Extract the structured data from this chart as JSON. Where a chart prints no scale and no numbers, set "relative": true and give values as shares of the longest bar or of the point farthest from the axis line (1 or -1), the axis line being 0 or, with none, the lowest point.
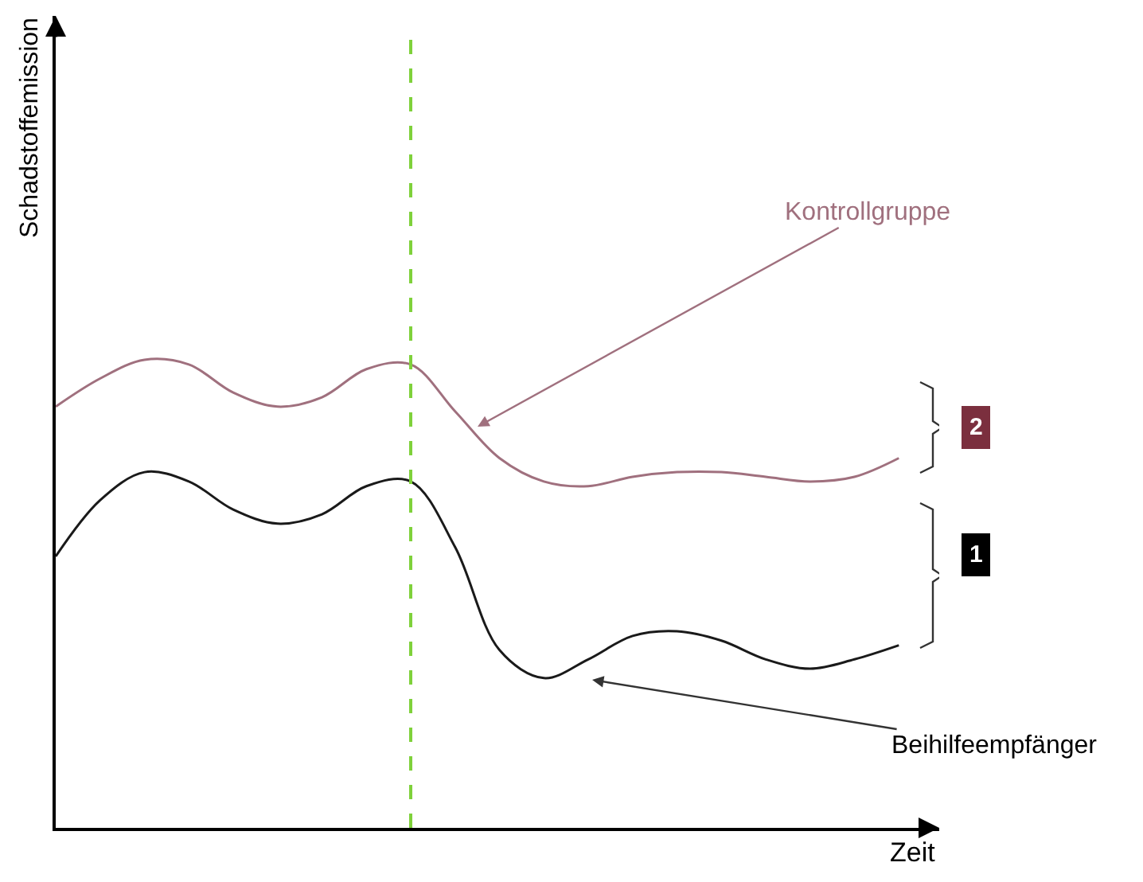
{
  "chart_data": {
    "type": "line",
    "relative": true,
    "xlabel": "Zeit",
    "ylabel": "Schadstoffemission",
    "categories": [
      null,
      null,
      null,
      null,
      null,
      null,
      null,
      null,
      null,
      null,
      null,
      null,
      null,
      null,
      null,
      null,
      null,
      null,
      null,
      null
    ],
    "series": [
      {
        "color": "#a0707e",
        "values": [
          0.9,
          0.96,
          1.0,
          0.99,
          0.93,
          0.9,
          0.92,
          0.98,
          0.99,
          0.89,
          0.79,
          0.74,
          0.73,
          0.75,
          0.76,
          0.76,
          0.75,
          0.74,
          0.75,
          0.79
        ]
      },
      {
        "color": "#1a1a1a",
        "values": [
          0.58,
          0.7,
          0.76,
          0.74,
          0.68,
          0.65,
          0.67,
          0.73,
          0.74,
          0.6,
          0.38,
          0.32,
          0.36,
          0.41,
          0.42,
          0.4,
          0.36,
          0.34,
          0.36,
          0.39
        ]
      }
    ],
    "annotations": [
      "Kontrollgruppe",
      "Beihilfeempfänger",
      "2",
      "1"
    ],
    "marker": "none",
    "line_style": "solid"
  }
}
